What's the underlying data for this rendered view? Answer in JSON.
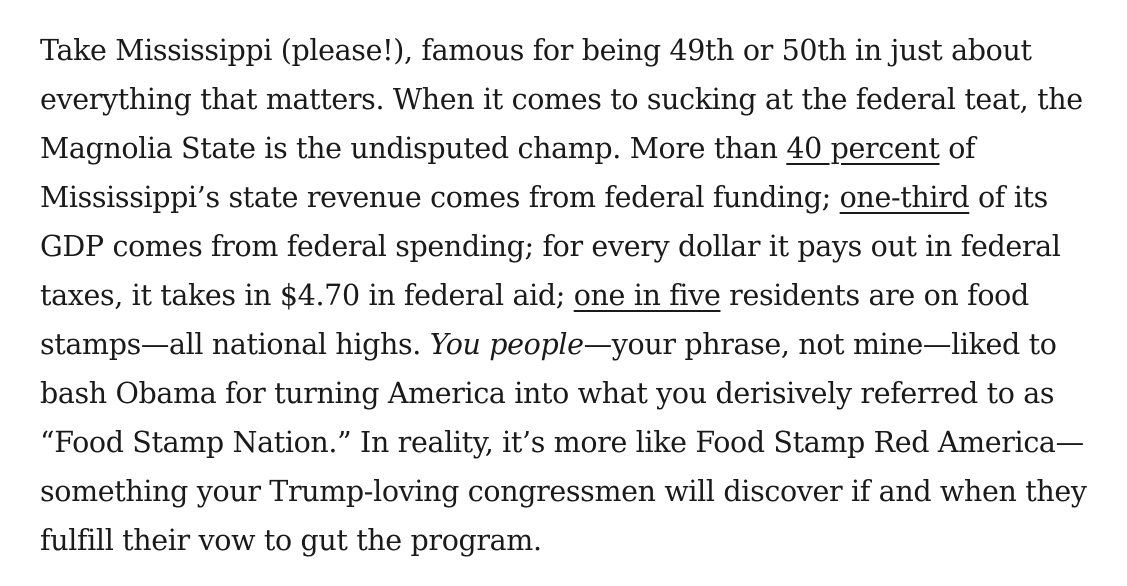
{
  "paragraph": {
    "t1": "Take Mississippi (please!), famous for being 49th or 50th in just about everything that matters. When it comes to sucking at the federal teat, the Magnolia State is the undisputed champ. More than ",
    "link1": "40 percent",
    "t2": " of Mississippi’s state revenue comes from federal funding; ",
    "link2": "one-third",
    "t3": " of its GDP comes from federal spending; for every dollar it pays out in federal taxes, it takes in $4.70 in federal aid; ",
    "link3": "one in five",
    "t4": " residents are on food stamps—all national highs. ",
    "emphasis": "You people",
    "t5": "—your phrase, not mine—liked to bash Obama for turning America into what you derisively referred to as “Food Stamp Nation.” In reality, it’s more like Food Stamp Red America—something your Trump-loving congressmen will discover if and when they fulfill their vow to gut the program."
  }
}
